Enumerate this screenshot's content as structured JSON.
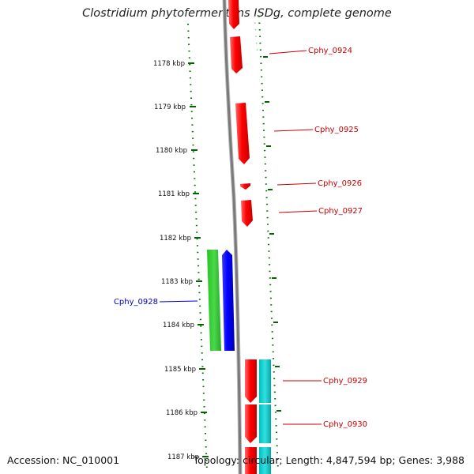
{
  "header": {
    "title": "Clostridium phytofermentans ISDg, complete genome"
  },
  "footer": {
    "accession": "Accession: NC_010001",
    "summary": "Topology: circular; Length: 4,847,594 bp; Genes: 3,988"
  },
  "colors": {
    "forward_gene": "#ff0000",
    "reverse_gene": "#0000ff",
    "rna_track": "#33cc33",
    "cds_track": "#00cccc",
    "backbone": "#888888",
    "tick": "#006600",
    "label_red": "#cc0000",
    "label_blue": "#0000cc"
  },
  "ruler": {
    "unit": "kbp",
    "ticks": [
      "1178 kbp",
      "1179 kbp",
      "1180 kbp",
      "1181 kbp",
      "1182 kbp",
      "1183 kbp",
      "1184 kbp",
      "1185 kbp",
      "1186 kbp",
      "1187 kbp"
    ]
  },
  "genes": [
    {
      "name": "Cphy_0924",
      "strand": "forward",
      "label_color": "label_red"
    },
    {
      "name": "Cphy_0925",
      "strand": "forward",
      "label_color": "label_red"
    },
    {
      "name": "Cphy_0926",
      "strand": "forward",
      "label_color": "label_red"
    },
    {
      "name": "Cphy_0927",
      "strand": "forward",
      "label_color": "label_red"
    },
    {
      "name": "Cphy_0928",
      "strand": "reverse",
      "label_color": "label_blue"
    },
    {
      "name": "Cphy_0929",
      "strand": "forward",
      "label_color": "label_red"
    },
    {
      "name": "Cphy_0930",
      "strand": "forward",
      "label_color": "label_red"
    }
  ]
}
